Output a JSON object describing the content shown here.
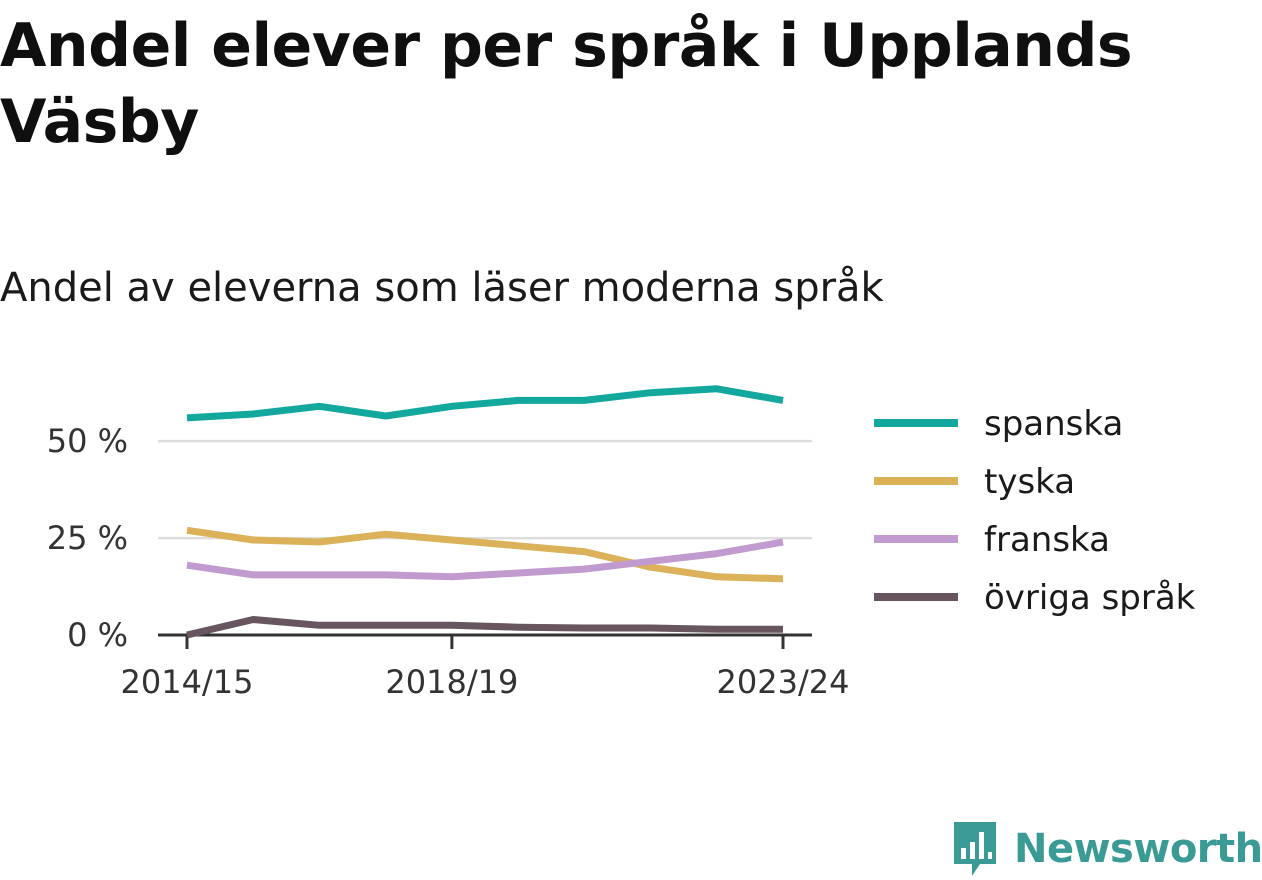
{
  "title": "Andel elever per språk i Upplands Väsby",
  "subtitle": "Andel av eleverna som läser moderna språk",
  "brand": "Newsworthy",
  "chart_data": {
    "type": "line",
    "x": [
      "2014/15",
      "2015/16",
      "2016/17",
      "2017/18",
      "2018/19",
      "2019/20",
      "2020/21",
      "2021/22",
      "2022/23",
      "2023/24"
    ],
    "x_tick_labels": [
      "2014/15",
      "2018/19",
      "2023/24"
    ],
    "y_tick_values": [
      0,
      25,
      50
    ],
    "y_tick_labels": [
      "0 %",
      "25 %",
      "50 %"
    ],
    "ylim": [
      0,
      65
    ],
    "grid": true,
    "legend_position": "right",
    "series": [
      {
        "name": "spanska",
        "color": "#12a89d",
        "values": [
          56,
          57,
          59,
          56.5,
          59,
          60.5,
          60.5,
          62.5,
          63.5,
          60.5
        ]
      },
      {
        "name": "tyska",
        "color": "#dbb159",
        "values": [
          27,
          24.5,
          24,
          26,
          24.5,
          23,
          21.5,
          17.5,
          15,
          14.5
        ]
      },
      {
        "name": "franska",
        "color": "#c19acf",
        "values": [
          18,
          15.5,
          15.5,
          15.5,
          15,
          16,
          17,
          19,
          21,
          24
        ]
      },
      {
        "name": "övriga språk",
        "color": "#675560",
        "values": [
          0,
          4,
          2.5,
          2.5,
          2.5,
          2,
          1.8,
          1.8,
          1.5,
          1.5
        ]
      }
    ]
  }
}
